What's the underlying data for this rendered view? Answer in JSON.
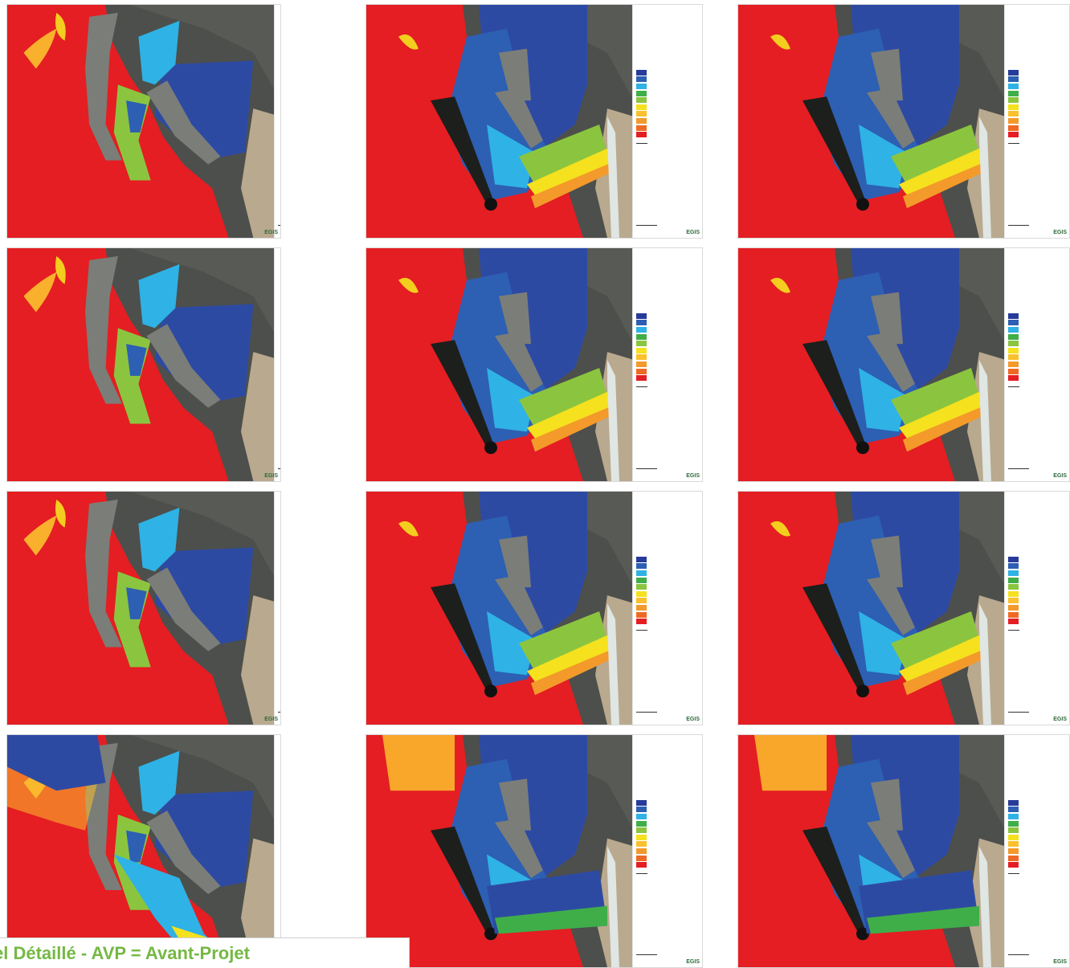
{
  "panels": [
    {
      "variant": "a"
    },
    {
      "variant": "b"
    },
    {
      "variant": "b"
    },
    {
      "variant": "a"
    },
    {
      "variant": "b"
    },
    {
      "variant": "b"
    },
    {
      "variant": "a"
    },
    {
      "variant": "b"
    },
    {
      "variant": "b"
    },
    {
      "variant": "c"
    },
    {
      "variant": "d"
    },
    {
      "variant": "d"
    }
  ],
  "legend": {
    "class_colors": [
      "#273b9a",
      "#2d5fb3",
      "#2fb2e5",
      "#3fae49",
      "#8bc53f",
      "#f5e11e",
      "#fbc02d",
      "#f39a2b",
      "#ee6a24",
      "#e41e22"
    ]
  },
  "logo_text": "EGIS",
  "footer": {
    "text": "el Détaillé  -  AVP = Avant-Projet"
  }
}
